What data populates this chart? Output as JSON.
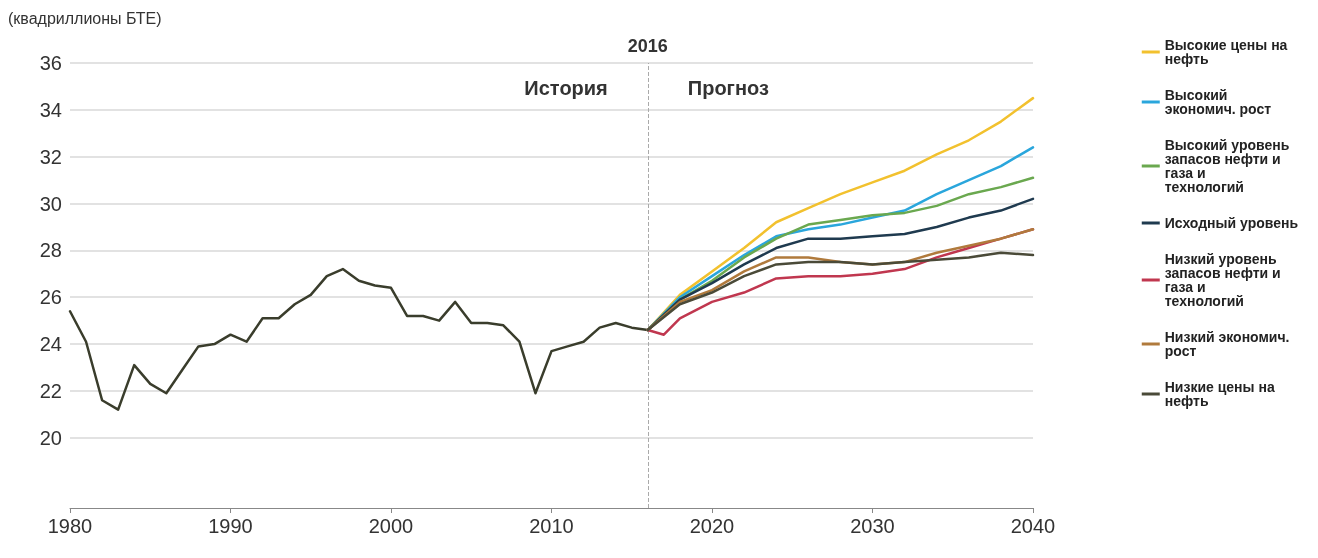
{
  "chart_data": {
    "type": "line",
    "ylabel": "(квадриллионы БТЕ)",
    "annotations": [
      "История",
      "Прогноз"
    ],
    "xlim": [
      1980,
      2040
    ],
    "xticks": [
      1980,
      1990,
      2000,
      2010,
      2020,
      2030,
      2040
    ],
    "ylim": [
      17,
      36
    ],
    "yticks": [
      20,
      22,
      24,
      26,
      28,
      30,
      32,
      34,
      36
    ],
    "grid": "y",
    "legend": "right",
    "line_style": "solid",
    "marker": "none",
    "ref_lines": [
      {
        "axis": "x",
        "value": 2016,
        "label": "2016",
        "color": "#aaaaaa",
        "line_style": "dashed"
      }
    ],
    "series": [
      {
        "color": "#3a3d2c",
        "x": [
          1980,
          1981,
          1982,
          1983,
          1984,
          1985,
          1986,
          1987,
          1988,
          1989,
          1990,
          1991,
          1992,
          1993,
          1994,
          1995,
          1996,
          1997,
          1998,
          1999,
          2000,
          2001,
          2002,
          2003,
          2004,
          2005,
          2006,
          2007,
          2008,
          2009,
          2010,
          2011,
          2012,
          2013,
          2014,
          2015,
          2016
        ],
        "values": [
          25.4,
          24.1,
          21.6,
          21.2,
          23.1,
          22.3,
          21.9,
          22.9,
          23.9,
          24.0,
          24.4,
          24.1,
          25.1,
          25.1,
          25.7,
          26.1,
          26.9,
          27.2,
          26.7,
          26.5,
          26.4,
          25.2,
          25.2,
          25.0,
          25.8,
          24.9,
          24.9,
          24.8,
          24.1,
          21.9,
          23.7,
          23.9,
          24.1,
          24.7,
          24.9,
          24.7,
          24.6
        ]
      },
      {
        "name": "Высокие цены на нефть",
        "color": "#f2c12e",
        "x": [
          2016,
          2018,
          2020,
          2022,
          2024,
          2026,
          2028,
          2030,
          2032,
          2034,
          2036,
          2038,
          2040
        ],
        "values": [
          24.6,
          26.1,
          27.1,
          28.1,
          29.2,
          29.8,
          30.4,
          30.9,
          31.4,
          32.1,
          32.7,
          33.5,
          34.5
        ]
      },
      {
        "name": "Высокий экономич. рост",
        "color": "#2aa6dc",
        "x": [
          2016,
          2018,
          2020,
          2022,
          2024,
          2026,
          2028,
          2030,
          2032,
          2034,
          2036,
          2038,
          2040
        ],
        "values": [
          24.6,
          26.0,
          26.9,
          27.8,
          28.6,
          28.9,
          29.1,
          29.4,
          29.7,
          30.4,
          31.0,
          31.6,
          32.4
        ]
      },
      {
        "name": "Высокий уровень запасов нефти и газа и технологий",
        "color": "#6aa84f",
        "x": [
          2016,
          2018,
          2020,
          2022,
          2024,
          2026,
          2028,
          2030,
          2032,
          2034,
          2036,
          2038,
          2040
        ],
        "values": [
          24.6,
          25.9,
          26.7,
          27.7,
          28.5,
          29.1,
          29.3,
          29.5,
          29.6,
          29.9,
          30.4,
          30.7,
          31.1
        ]
      },
      {
        "name": "Исходный уровень",
        "color": "#1f3a4f",
        "x": [
          2016,
          2018,
          2020,
          2022,
          2024,
          2026,
          2028,
          2030,
          2032,
          2034,
          2036,
          2038,
          2040
        ],
        "values": [
          24.6,
          25.9,
          26.6,
          27.4,
          28.1,
          28.5,
          28.5,
          28.6,
          28.7,
          29.0,
          29.4,
          29.7,
          30.2
        ]
      },
      {
        "name": "Низкий уровень запасов нефти и газа и технологий",
        "color": "#c0374f",
        "x": [
          2016,
          2017,
          2018,
          2020,
          2022,
          2024,
          2026,
          2028,
          2030,
          2032,
          2034,
          2036,
          2038,
          2040
        ],
        "values": [
          24.6,
          24.4,
          25.1,
          25.8,
          26.2,
          26.8,
          26.9,
          26.9,
          27.0,
          27.2,
          27.7,
          28.1,
          28.5,
          28.9
        ]
      },
      {
        "name": "Низкий экономич. рост",
        "color": "#b07a3c",
        "x": [
          2016,
          2018,
          2020,
          2022,
          2024,
          2026,
          2028,
          2030,
          2032,
          2034,
          2036,
          2038,
          2040
        ],
        "values": [
          24.6,
          25.8,
          26.3,
          27.1,
          27.7,
          27.7,
          27.5,
          27.4,
          27.5,
          27.9,
          28.2,
          28.5,
          28.9
        ]
      },
      {
        "name": "Низкие цены на нефть",
        "color": "#4a4a38",
        "x": [
          2016,
          2018,
          2020,
          2022,
          2024,
          2026,
          2028,
          2030,
          2032,
          2034,
          2036,
          2038,
          2040
        ],
        "values": [
          24.6,
          25.7,
          26.2,
          26.9,
          27.4,
          27.5,
          27.5,
          27.4,
          27.5,
          27.6,
          27.7,
          27.9,
          27.8
        ]
      }
    ]
  }
}
